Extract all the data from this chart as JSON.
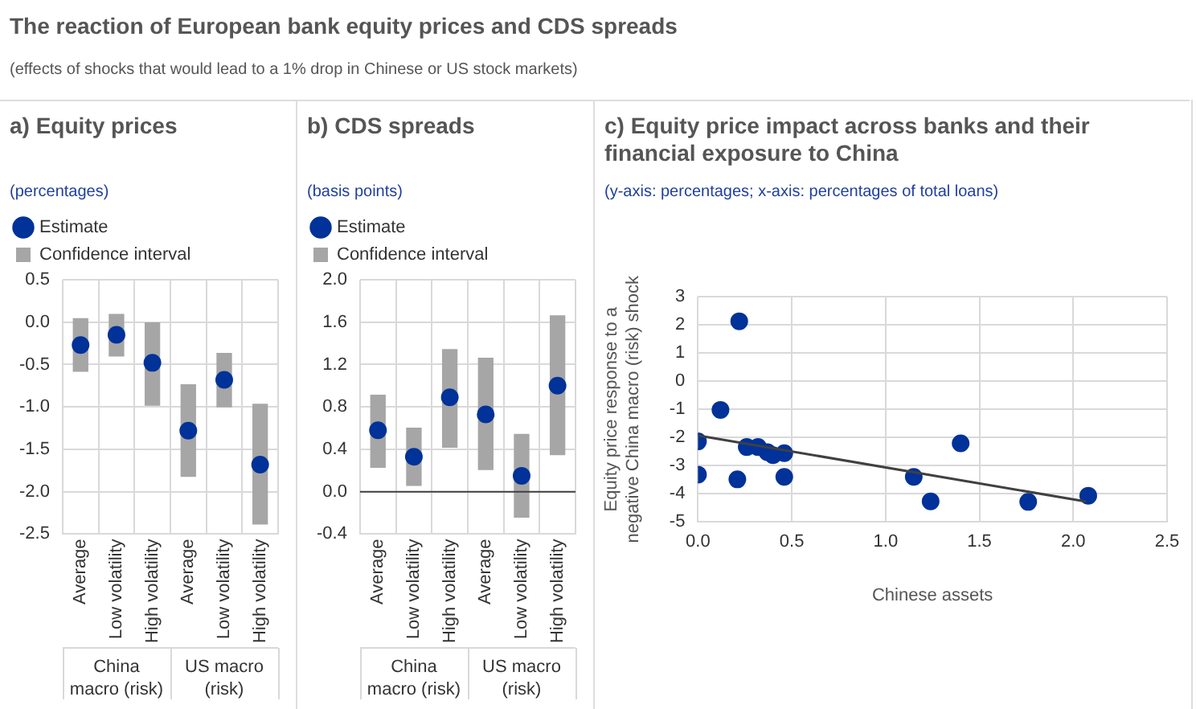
{
  "chart_data": [
    {
      "type": "bar",
      "title": "a) Equity prices",
      "subtitle": "(percentages)",
      "annotations": [
        "The reaction of European bank equity prices and CDS spreads",
        "(effects of shocks that would lead to a 1% drop in Chinese or US stock markets)",
        "China macro (risk)",
        "US macro (risk)"
      ],
      "categories": [
        "Average",
        "Low volatility",
        "High volatility",
        "Average",
        "Low volatility",
        "High volatility"
      ],
      "series": [
        {
          "name": "Estimate",
          "type": "scatter",
          "color": "#003299",
          "marker": "circle",
          "values": [
            -0.27,
            -0.15,
            -0.48,
            -1.28,
            -0.68,
            -1.68
          ]
        },
        {
          "name": "Confidence interval",
          "type": "bar",
          "color": "#a6a6a6",
          "base": [
            -0.58,
            -0.4,
            -0.98,
            -1.82,
            -1.0,
            -2.38
          ],
          "values": [
            0.62,
            0.49,
            0.98,
            1.08,
            0.63,
            1.41
          ]
        }
      ],
      "ylim": [
        -2.5,
        0.5
      ],
      "yticks": [
        0.5,
        {
          "value": 0,
          "label": "0.0"
        },
        -0.5,
        {
          "value": -1,
          "label": "-1.0"
        },
        -1.5,
        {
          "value": -2,
          "label": "-2.0"
        },
        -2.5
      ],
      "grid": true,
      "legend": "top left"
    },
    {
      "type": "bar",
      "title": "b) CDS spreads",
      "subtitle": "(basis points)",
      "annotations": [
        "China macro (risk)",
        "US macro (risk)"
      ],
      "categories": [
        "Average",
        "Low volatility",
        "High volatility",
        "Average",
        "Low volatility",
        "High volatility"
      ],
      "series": [
        {
          "name": "Estimate",
          "type": "scatter",
          "color": "#003299",
          "marker": "circle",
          "values": [
            0.58,
            0.33,
            0.89,
            0.73,
            0.15,
            1.0
          ]
        },
        {
          "name": "Confidence interval",
          "type": "bar",
          "color": "#a6a6a6",
          "base": [
            0.23,
            0.06,
            0.42,
            0.21,
            -0.24,
            0.35
          ],
          "values": [
            0.68,
            0.54,
            0.92,
            1.05,
            0.78,
            1.31
          ]
        }
      ],
      "ylim": [
        -0.4,
        2
      ],
      "yticks": [
        {
          "value": 2,
          "label": "2.0"
        },
        1.6,
        1.2,
        0.8,
        0.4,
        {
          "value": 0,
          "label": "0.0"
        },
        -0.4
      ],
      "ref_lines": [
        {
          "axis": "y",
          "value": 0,
          "color": "#404040"
        }
      ],
      "grid": true,
      "legend": "top left"
    },
    {
      "type": "scatter",
      "title": "c) Equity price impact across banks and their financial exposure to China",
      "subtitle": "(y-axis: percentages; x-axis: percentages of total loans)",
      "xlabel": "Chinese assets",
      "ylabel": "Equity price response to a negative China macro (risk) shock",
      "series": [
        {
          "type": "scatter",
          "color": "#003299",
          "marker": "circle",
          "x": [
            0,
            0,
            0.12,
            0.22,
            0.21,
            0.26,
            0.32,
            0.37,
            0.4,
            0.46,
            0.46,
            1.15,
            1.24,
            1.4,
            1.76,
            2.08
          ],
          "values": [
            -2.14,
            -3.32,
            -1.02,
            2.13,
            -3.49,
            -2.34,
            -2.34,
            -2.52,
            -2.63,
            -2.56,
            -3.4,
            -3.4,
            -4.27,
            -2.21,
            -4.29,
            -4.07
          ]
        },
        {
          "type": "line",
          "color": "#404040",
          "x": [
            0,
            2.07
          ],
          "values": [
            -1.93,
            -4.28
          ]
        }
      ],
      "xlim": [
        0,
        2.5
      ],
      "xticks": [
        {
          "value": 0,
          "label": "0.0"
        },
        0.5,
        {
          "value": 1,
          "label": "1.0"
        },
        1.5,
        {
          "value": 2,
          "label": "2.0"
        },
        2.5
      ],
      "ylim": [
        -5,
        3
      ],
      "yticks": [
        3,
        2,
        1,
        0,
        -1,
        -2,
        -3,
        -4,
        -5
      ],
      "grid": true
    }
  ]
}
